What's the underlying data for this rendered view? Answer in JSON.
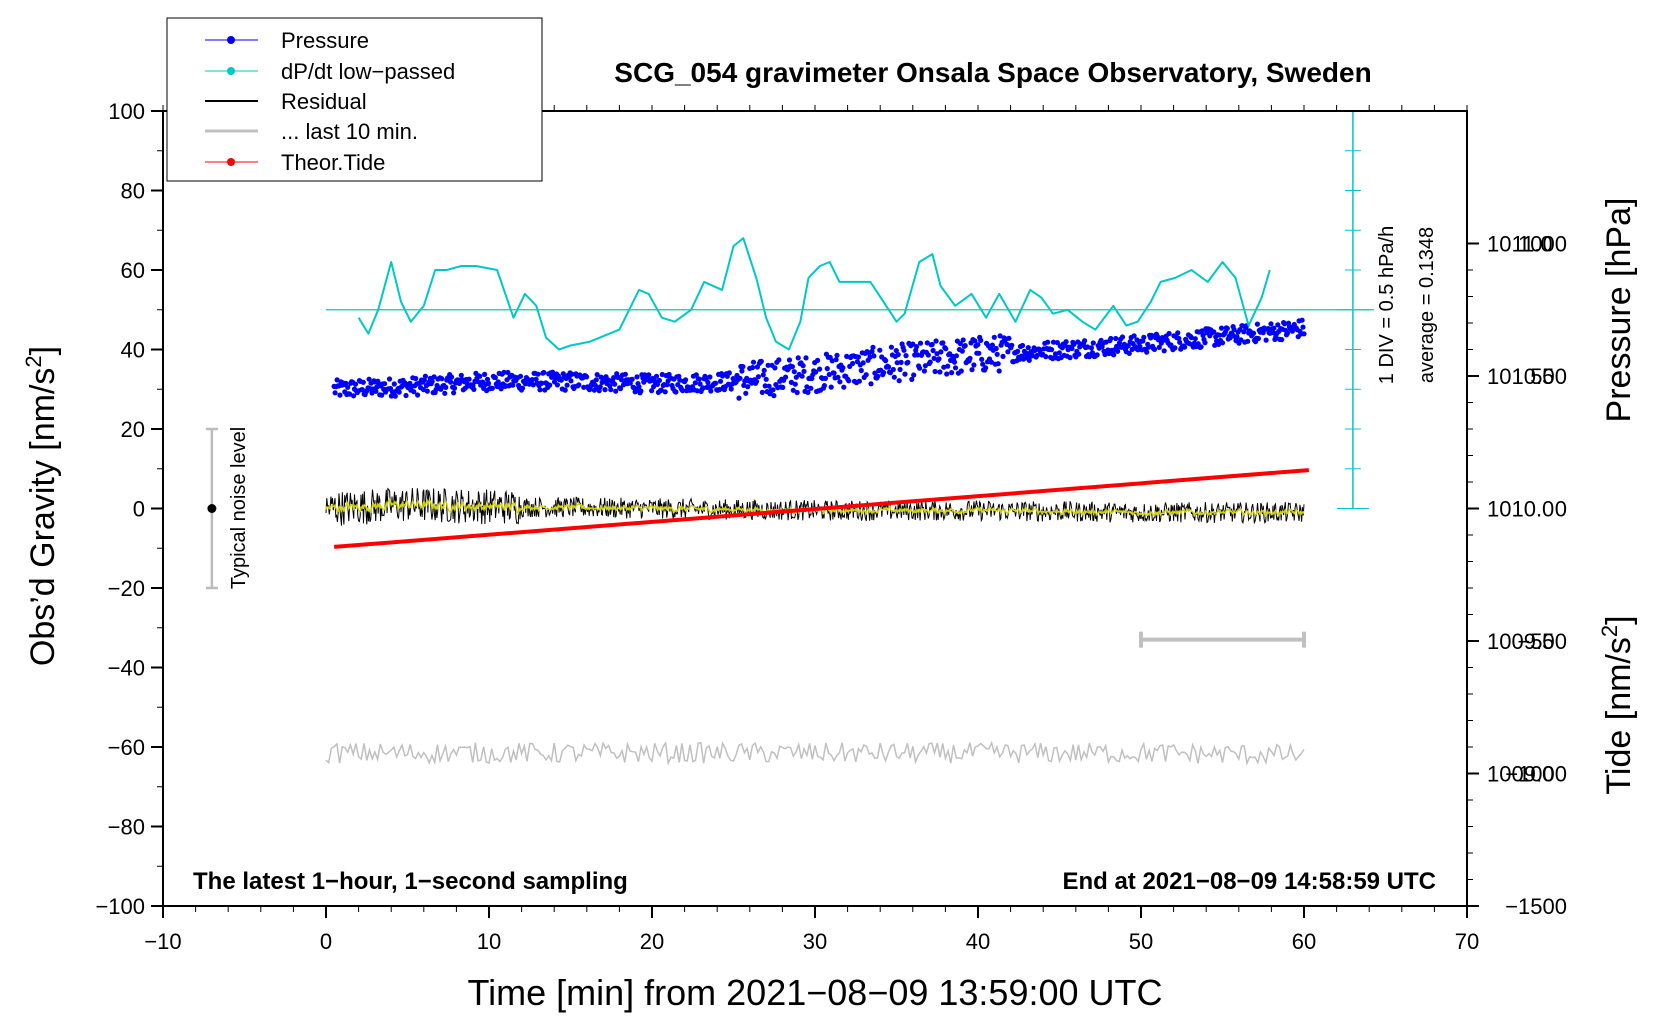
{
  "chart_data": {
    "type": "line",
    "title": "SCG_054 gravimeter Onsala Space Observatory, Sweden",
    "xlabel": "Time [min] from 2021−08−09 13:59:00 UTC",
    "ylabel_main": "Obs’d Gravity [nm/s",
    "ylabel_sup": "2",
    "ylabel_close": "]",
    "ylabel_pressure": "Pressure [hPa]",
    "ylabel_tide_main": "Tide [nm/s",
    "ylabel_tide_sup": "2",
    "ylabel_tide_close": "]",
    "xlim": [
      -10,
      70
    ],
    "ylim": [
      -100,
      100
    ],
    "pressure_lim": [
      1008.5,
      1011.5
    ],
    "tide_lim": [
      -1500,
      1500
    ],
    "x_ticks": [
      "−10",
      "0",
      "10",
      "20",
      "30",
      "40",
      "50",
      "60",
      "70"
    ],
    "y_ticks": [
      "−100",
      "−80",
      "−60",
      "−40",
      "−20",
      "0",
      "20",
      "40",
      "60",
      "80",
      "100"
    ],
    "pressure_ticks": [
      "1009.0",
      "1009.5",
      "1010.0",
      "1010.5",
      "1011.0"
    ],
    "tide_ticks": [
      "−1500",
      "−1000",
      "−500",
      "0",
      "500",
      "1000"
    ],
    "legend": [
      {
        "label": "Pressure",
        "color": "#0000ff",
        "marker": true
      },
      {
        "label": "dP/dt low−passed",
        "color": "#00c8c8",
        "marker": true
      },
      {
        "label": "Residual",
        "color": "#000000",
        "marker": false
      },
      {
        "label": "... last 10 min.",
        "color": "#c0c0c0",
        "marker": false
      },
      {
        "label": "Theor.Tide",
        "color": "#ff0000",
        "marker": true
      }
    ],
    "annotations": {
      "noise_label": "Typical noise level",
      "div_label": "1 DIV = 0.5 hPa/h",
      "average_label": "average = 0.1348",
      "bottom_left": "The latest 1−hour, 1−second sampling",
      "bottom_right": "End at 2021−08−09 14:58:59 UTC"
    },
    "noise_bar": {
      "x": -7,
      "center": 0,
      "low": -20,
      "high": 20
    },
    "ten_min_bar": {
      "x0": 50,
      "x1": 60,
      "y": -33
    },
    "dpdt_zero_level": 50,
    "series": [
      {
        "name": "Pressure",
        "axis": "pressure",
        "color": "#0000ff",
        "x": [
          0.5,
          5,
          10,
          15,
          20,
          25,
          30,
          35,
          40,
          45,
          50,
          55,
          60
        ],
        "values": [
          1010.45,
          1010.46,
          1010.48,
          1010.48,
          1010.47,
          1010.48,
          1010.51,
          1010.55,
          1010.58,
          1010.6,
          1010.62,
          1010.65,
          1010.68
        ]
      },
      {
        "name": "dP/dt low-passed",
        "axis": "main",
        "color": "#00c8c8",
        "x": [
          2,
          2.6,
          3.2,
          4,
          4.6,
          5.2,
          6,
          6.7,
          7.4,
          8.3,
          9.2,
          10.5,
          11.5,
          12.2,
          12.9,
          13.5,
          14.3,
          15,
          16.2,
          18,
          19.2,
          19.8,
          20.6,
          21.4,
          22.4,
          23.2,
          24.3,
          25,
          25.6,
          26.4,
          27,
          27.6,
          28.4,
          29.1,
          29.6,
          30.3,
          30.9,
          31.5,
          32.6,
          33.4,
          34.2,
          35,
          35.5,
          36.4,
          37.2,
          37.7,
          38.6,
          39.6,
          40.5,
          41.3,
          42.3,
          43.2,
          43.9,
          44.6,
          45.5,
          46.4,
          47.2,
          48.3,
          49.1,
          49.8,
          50.6,
          51.2,
          52.1,
          53.1,
          54.1,
          55,
          55.8,
          56.6,
          57.4,
          57.9
        ],
        "values": [
          48,
          44,
          50,
          62,
          52,
          47,
          51,
          60,
          60,
          61,
          61,
          60,
          48,
          54,
          51,
          43,
          40,
          41,
          42,
          45,
          55,
          54,
          48,
          47,
          50,
          57,
          55,
          66,
          68,
          58,
          48,
          42,
          40,
          47,
          58,
          61,
          62,
          57,
          57,
          57,
          52,
          47,
          49,
          62,
          64,
          56,
          51,
          54,
          48,
          54,
          47,
          55,
          53,
          49,
          50,
          47,
          45,
          51,
          46,
          47,
          52,
          57,
          58,
          60,
          57,
          62,
          58,
          46,
          53,
          60
        ]
      },
      {
        "name": "Residual",
        "axis": "main",
        "color": "#000000",
        "x": [
          0,
          5,
          10,
          20,
          30,
          40,
          50,
          60
        ],
        "values": [
          0,
          1,
          0.5,
          0,
          -0.5,
          -0.5,
          -1,
          -1
        ]
      },
      {
        "name": "... last 10 min.",
        "axis": "main",
        "color": "#c0c0c0",
        "x": [
          0,
          10,
          20,
          30,
          40,
          50,
          60
        ],
        "values": [
          -61.5,
          -61.5,
          -61.5,
          -61.5,
          -61.5,
          -61.5,
          -62
        ]
      },
      {
        "name": "Theor.Tide",
        "axis": "tide",
        "color": "#ff0000",
        "x": [
          0.5,
          60.3
        ],
        "values": [
          -145,
          145
        ]
      }
    ]
  }
}
